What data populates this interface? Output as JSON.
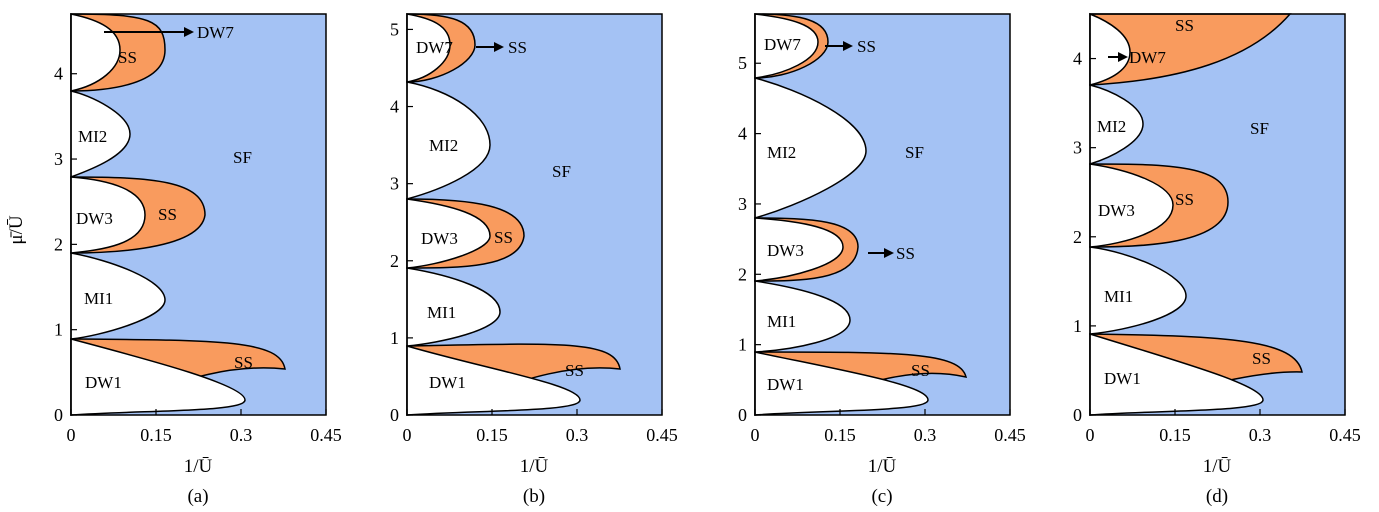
{
  "colors": {
    "superfluid": "#a4c2f4",
    "supersolid": "#f99b5e",
    "insulator": "#ffffff",
    "outline": "#000000"
  },
  "shared_labels": {
    "ylabel": "μ̄/Ū",
    "xlabel": "1/Ū",
    "x_ticks": [
      "0",
      "0.15",
      "0.3",
      "0.45"
    ]
  },
  "chart_data": [
    {
      "type": "area",
      "caption": "(a)",
      "xlim": [
        0,
        0.45
      ],
      "ylim": [
        0,
        4.7
      ],
      "y_ticks": [
        "0",
        "1",
        "2",
        "3",
        "4"
      ],
      "y_tick_values": [
        0,
        1,
        2,
        3,
        4
      ],
      "sf_label": "SF",
      "regions": [
        {
          "label": "DW1",
          "kind": "insulator",
          "ymin": 0.0,
          "ymax": 0.9,
          "tip": 0.3,
          "tip_y": 0.3
        },
        {
          "label": "SS",
          "kind": "supersolid",
          "ymin": 0.0,
          "ymax": 0.9,
          "tip": 0.39,
          "tip_y": 0.38
        },
        {
          "label": "MI1",
          "kind": "insulator",
          "ymin": 0.9,
          "ymax": 1.9,
          "tip": 0.16,
          "tip_y": 1.3
        },
        {
          "label": "DW3",
          "kind": "insulator",
          "ymin": 1.9,
          "ymax": 2.8,
          "tip": 0.13,
          "tip_y": 2.35
        },
        {
          "label": "SS",
          "kind": "supersolid",
          "ymin": 1.9,
          "ymax": 2.8,
          "tip": 0.23,
          "tip_y": 2.35
        },
        {
          "label": "MI2",
          "kind": "insulator",
          "ymin": 2.8,
          "ymax": 3.8,
          "tip": 0.09,
          "tip_y": 3.3
        },
        {
          "label": "DW7",
          "kind": "insulator",
          "ymin": 3.8,
          "ymax": 4.7,
          "tip": 0.07,
          "tip_y": 4.25
        },
        {
          "label": "SS",
          "kind": "supersolid",
          "ymin": 3.8,
          "ymax": 4.7,
          "tip": 0.15,
          "tip_y": 4.25
        }
      ],
      "arrow_label": "DW7"
    },
    {
      "type": "area",
      "caption": "(b)",
      "xlim": [
        0,
        0.45
      ],
      "ylim": [
        0,
        5.2
      ],
      "y_ticks": [
        "0",
        "1",
        "2",
        "3",
        "4",
        "5"
      ],
      "y_tick_values": [
        0,
        1,
        2,
        3,
        4,
        5
      ],
      "sf_label": "SF",
      "regions": [
        {
          "label": "DW1",
          "kind": "insulator",
          "ymin": 0.0,
          "ymax": 0.9,
          "tip": 0.3,
          "tip_y": 0.3
        },
        {
          "label": "SS",
          "kind": "supersolid",
          "ymin": 0.0,
          "ymax": 0.9,
          "tip": 0.39,
          "tip_y": 0.38
        },
        {
          "label": "MI1",
          "kind": "insulator",
          "ymin": 0.9,
          "ymax": 1.9,
          "tip": 0.16,
          "tip_y": 1.35
        },
        {
          "label": "DW3",
          "kind": "insulator",
          "ymin": 1.9,
          "ymax": 2.8,
          "tip": 0.13,
          "tip_y": 2.35
        },
        {
          "label": "SS",
          "kind": "supersolid",
          "ymin": 1.9,
          "ymax": 2.8,
          "tip": 0.2,
          "tip_y": 2.35
        },
        {
          "label": "MI2",
          "kind": "insulator",
          "ymin": 2.8,
          "ymax": 4.3,
          "tip": 0.15,
          "tip_y": 3.5
        },
        {
          "label": "DW7",
          "kind": "insulator",
          "ymin": 4.3,
          "ymax": 5.2,
          "tip": 0.09,
          "tip_y": 4.75
        },
        {
          "label": "SS",
          "kind": "supersolid",
          "ymin": 4.3,
          "ymax": 5.2,
          "tip": 0.12,
          "tip_y": 4.75
        }
      ],
      "arrow_label": "SS"
    },
    {
      "type": "area",
      "caption": "(c)",
      "xlim": [
        0,
        0.45
      ],
      "ylim": [
        0,
        5.7
      ],
      "y_ticks": [
        "0",
        "1",
        "2",
        "3",
        "4",
        "5"
      ],
      "y_tick_values": [
        0,
        1,
        2,
        3,
        4,
        5
      ],
      "sf_label": "SF",
      "regions": [
        {
          "label": "DW1",
          "kind": "insulator",
          "ymin": 0.0,
          "ymax": 0.9,
          "tip": 0.3,
          "tip_y": 0.3
        },
        {
          "label": "SS",
          "kind": "supersolid",
          "ymin": 0.0,
          "ymax": 0.9,
          "tip": 0.39,
          "tip_y": 0.38
        },
        {
          "label": "MI1",
          "kind": "insulator",
          "ymin": 0.9,
          "ymax": 1.9,
          "tip": 0.16,
          "tip_y": 1.4
        },
        {
          "label": "DW3",
          "kind": "insulator",
          "ymin": 1.9,
          "ymax": 2.8,
          "tip": 0.15,
          "tip_y": 2.35
        },
        {
          "label": "SS",
          "kind": "supersolid",
          "ymin": 1.9,
          "ymax": 2.8,
          "tip": 0.18,
          "tip_y": 2.35
        },
        {
          "label": "MI2",
          "kind": "insulator",
          "ymin": 2.8,
          "ymax": 4.8,
          "tip": 0.2,
          "tip_y": 3.9
        },
        {
          "label": "DW7",
          "kind": "insulator",
          "ymin": 4.8,
          "ymax": 5.7,
          "tip": 0.11,
          "tip_y": 5.25
        },
        {
          "label": "SS",
          "kind": "supersolid",
          "ymin": 4.8,
          "ymax": 5.7,
          "tip": 0.13,
          "tip_y": 5.25
        }
      ],
      "arrow_labels": [
        "SS",
        "SS"
      ]
    },
    {
      "type": "area",
      "caption": "(d)",
      "xlim": [
        0,
        0.45
      ],
      "ylim": [
        0,
        4.5
      ],
      "y_ticks": [
        "0",
        "1",
        "2",
        "3",
        "4"
      ],
      "y_tick_values": [
        0,
        1,
        2,
        3,
        4
      ],
      "sf_label": "SF",
      "regions": [
        {
          "label": "DW1",
          "kind": "insulator",
          "ymin": 0.0,
          "ymax": 0.9,
          "tip": 0.3,
          "tip_y": 0.3
        },
        {
          "label": "SS",
          "kind": "supersolid",
          "ymin": 0.0,
          "ymax": 0.9,
          "tip": 0.39,
          "tip_y": 0.4
        },
        {
          "label": "MI1",
          "kind": "insulator",
          "ymin": 0.9,
          "ymax": 1.9,
          "tip": 0.16,
          "tip_y": 1.35
        },
        {
          "label": "DW3",
          "kind": "insulator",
          "ymin": 1.9,
          "ymax": 2.8,
          "tip": 0.14,
          "tip_y": 2.35
        },
        {
          "label": "SS",
          "kind": "supersolid",
          "ymin": 1.9,
          "ymax": 2.8,
          "tip": 0.24,
          "tip_y": 2.35
        },
        {
          "label": "MI2",
          "kind": "insulator",
          "ymin": 2.8,
          "ymax": 3.7,
          "tip": 0.09,
          "tip_y": 3.25
        },
        {
          "label": "DW7",
          "kind": "insulator",
          "ymin": 3.7,
          "ymax": 4.5,
          "tip": 0.09,
          "tip_y": 4.1
        },
        {
          "label": "SS",
          "kind": "supersolid",
          "ymin": 3.7,
          "ymax": 4.5,
          "tip": 0.3,
          "tip_y": 4.5
        }
      ],
      "arrow_label": "DW7"
    }
  ]
}
